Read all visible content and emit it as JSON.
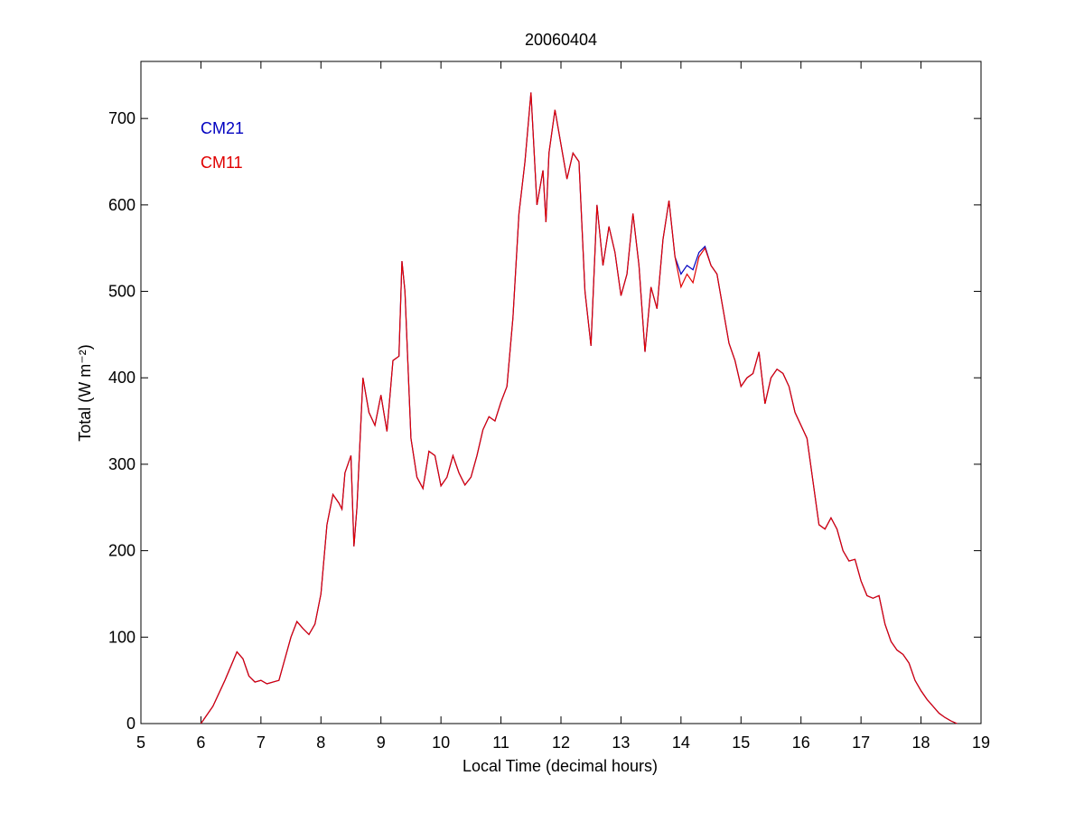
{
  "chart_data": {
    "type": "line",
    "title": "20060404",
    "x_label": "Local Time (decimal hours)",
    "y_label": "Total (W m⁻²)",
    "xlim": [
      5,
      19
    ],
    "xticks": [
      5,
      6,
      7,
      8,
      9,
      10,
      11,
      12,
      13,
      14,
      15,
      16,
      17,
      18,
      19
    ],
    "ylim": [
      0,
      766
    ],
    "yticks": [
      0,
      100,
      200,
      300,
      400,
      500,
      600,
      700
    ],
    "legend": "upper left",
    "x": [
      6.0,
      6.2,
      6.4,
      6.6,
      6.7,
      6.8,
      6.9,
      7.0,
      7.1,
      7.2,
      7.3,
      7.4,
      7.5,
      7.6,
      7.7,
      7.8,
      7.9,
      8.0,
      8.1,
      8.2,
      8.3,
      8.35,
      8.4,
      8.5,
      8.55,
      8.6,
      8.7,
      8.8,
      8.9,
      9.0,
      9.1,
      9.2,
      9.3,
      9.35,
      9.4,
      9.5,
      9.6,
      9.7,
      9.8,
      9.9,
      10.0,
      10.1,
      10.2,
      10.3,
      10.4,
      10.5,
      10.6,
      10.7,
      10.8,
      10.9,
      11.0,
      11.1,
      11.2,
      11.3,
      11.4,
      11.5,
      11.6,
      11.7,
      11.75,
      11.8,
      11.9,
      12.0,
      12.1,
      12.2,
      12.3,
      12.4,
      12.5,
      12.6,
      12.7,
      12.8,
      12.9,
      13.0,
      13.1,
      13.2,
      13.3,
      13.4,
      13.5,
      13.6,
      13.7,
      13.8,
      13.9,
      14.0,
      14.1,
      14.2,
      14.3,
      14.4,
      14.5,
      14.6,
      14.7,
      14.8,
      14.9,
      15.0,
      15.1,
      15.2,
      15.3,
      15.4,
      15.5,
      15.6,
      15.7,
      15.8,
      15.9,
      16.0,
      16.1,
      16.2,
      16.3,
      16.4,
      16.5,
      16.6,
      16.7,
      16.8,
      16.9,
      17.0,
      17.1,
      17.2,
      17.3,
      17.4,
      17.5,
      17.6,
      17.7,
      17.8,
      17.9,
      18.0,
      18.1,
      18.2,
      18.3,
      18.4,
      18.5,
      18.6
    ],
    "series": [
      {
        "name": "CM21",
        "color": "#0000c0",
        "values": [
          0,
          20,
          50,
          83,
          75,
          55,
          48,
          50,
          46,
          48,
          50,
          75,
          100,
          118,
          110,
          103,
          115,
          150,
          230,
          265,
          255,
          248,
          290,
          310,
          205,
          250,
          400,
          360,
          345,
          380,
          338,
          420,
          425,
          535,
          500,
          330,
          285,
          272,
          315,
          310,
          275,
          285,
          310,
          290,
          276,
          285,
          310,
          340,
          355,
          350,
          372,
          390,
          470,
          590,
          650,
          730,
          600,
          640,
          580,
          660,
          710,
          670,
          630,
          660,
          650,
          500,
          437,
          600,
          530,
          575,
          545,
          495,
          520,
          590,
          530,
          430,
          505,
          480,
          560,
          605,
          540,
          520,
          530,
          525,
          545,
          552,
          530,
          520,
          480,
          440,
          420,
          390,
          400,
          405,
          430,
          370,
          400,
          410,
          405,
          390,
          360,
          345,
          330,
          280,
          230,
          225,
          238,
          225,
          200,
          188,
          190,
          165,
          148,
          145,
          148,
          115,
          95,
          85,
          80,
          70,
          50,
          38,
          28,
          20,
          12,
          7,
          3,
          0
        ]
      },
      {
        "name": "CM11",
        "color": "#e00000",
        "values": [
          0,
          20,
          50,
          83,
          75,
          55,
          48,
          50,
          46,
          48,
          50,
          75,
          100,
          118,
          110,
          103,
          115,
          150,
          230,
          265,
          255,
          248,
          290,
          310,
          205,
          250,
          400,
          360,
          345,
          380,
          338,
          420,
          425,
          535,
          500,
          330,
          285,
          272,
          315,
          310,
          275,
          285,
          310,
          290,
          276,
          285,
          310,
          340,
          355,
          350,
          372,
          390,
          470,
          590,
          650,
          730,
          600,
          640,
          580,
          660,
          710,
          670,
          630,
          660,
          650,
          500,
          437,
          600,
          530,
          575,
          545,
          495,
          520,
          590,
          530,
          430,
          505,
          480,
          560,
          605,
          540,
          505,
          520,
          510,
          540,
          550,
          530,
          520,
          480,
          440,
          420,
          390,
          400,
          405,
          430,
          370,
          400,
          410,
          405,
          390,
          360,
          345,
          330,
          280,
          230,
          225,
          238,
          225,
          200,
          188,
          190,
          165,
          148,
          145,
          148,
          115,
          95,
          85,
          80,
          70,
          50,
          38,
          28,
          20,
          12,
          7,
          3,
          0
        ]
      }
    ]
  }
}
